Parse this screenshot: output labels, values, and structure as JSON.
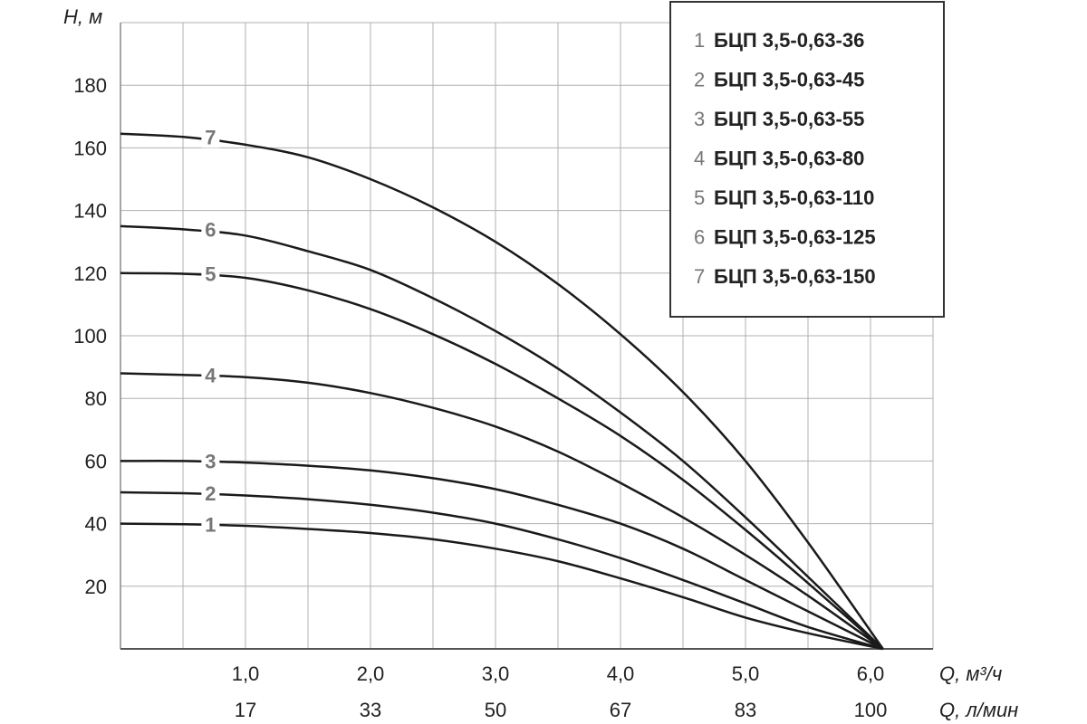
{
  "chart_data": {
    "type": "line",
    "ylabel": "H, м",
    "xlabel_primary": "Q, м³/ч",
    "xlabel_secondary": "Q, л/мин",
    "xlim": [
      0,
      6.5
    ],
    "ylim": [
      0,
      200
    ],
    "x_ticks": [
      "1,0",
      "2,0",
      "3,0",
      "4,0",
      "5,0",
      "6,0"
    ],
    "x_ticks_secondary": [
      "17",
      "33",
      "50",
      "67",
      "83",
      "100"
    ],
    "y_ticks": [
      "20",
      "40",
      "60",
      "80",
      "100",
      "120",
      "140",
      "160",
      "180"
    ],
    "grid": true,
    "legend_position": "top-right",
    "series": [
      {
        "label": "1",
        "name": "БЦП 3,5-0,63-36",
        "x": [
          0,
          0.5,
          1,
          1.5,
          2,
          2.5,
          3,
          3.5,
          4,
          4.5,
          5,
          5.5,
          6.1
        ],
        "y": [
          40,
          39.8,
          39.3,
          38.3,
          37,
          35,
          32,
          28,
          22.5,
          16.5,
          10,
          5,
          0
        ]
      },
      {
        "label": "2",
        "name": "БЦП 3,5-0,63-45",
        "x": [
          0,
          0.5,
          1,
          1.5,
          2,
          2.5,
          3,
          3.5,
          4,
          4.5,
          5,
          5.5,
          6.1
        ],
        "y": [
          50,
          49.7,
          49,
          47.8,
          46,
          43.5,
          40,
          35,
          29,
          22,
          14.5,
          7,
          0
        ]
      },
      {
        "label": "3",
        "name": "БЦП 3,5-0,63-55",
        "x": [
          0,
          0.5,
          1,
          1.5,
          2,
          2.5,
          3,
          3.5,
          4,
          4.5,
          5,
          5.5,
          6.1
        ],
        "y": [
          60,
          60,
          59.5,
          58.5,
          57,
          54.5,
          51,
          46,
          40,
          32,
          22,
          12,
          0
        ]
      },
      {
        "label": "4",
        "name": "БЦП 3,5-0,63-80",
        "x": [
          0,
          0.5,
          1,
          1.5,
          2,
          2.5,
          3,
          3.5,
          4,
          4.5,
          5,
          5.5,
          6.1
        ],
        "y": [
          88,
          87.5,
          86.8,
          85,
          81.7,
          77,
          71,
          63,
          53,
          42,
          30,
          17,
          0
        ]
      },
      {
        "label": "5",
        "name": "БЦП 3,5-0,63-110",
        "x": [
          0,
          0.5,
          1,
          1.5,
          2,
          2.5,
          3,
          3.5,
          4,
          4.5,
          5,
          5.5,
          6.1
        ],
        "y": [
          120,
          119.8,
          118.5,
          114.5,
          108.5,
          100.5,
          91,
          80,
          68,
          54,
          38,
          21,
          0
        ]
      },
      {
        "label": "6",
        "name": "БЦП 3,5-0,63-125",
        "x": [
          0,
          0.5,
          1,
          1.5,
          2,
          2.5,
          3,
          3.5,
          4,
          4.5,
          5,
          5.5,
          6.1
        ],
        "y": [
          135,
          134,
          132,
          127,
          121,
          112,
          101.5,
          89.5,
          75.5,
          60,
          42,
          23,
          0
        ]
      },
      {
        "label": "7",
        "name": "БЦП 3,5-0,63-150",
        "x": [
          0,
          0.5,
          1,
          1.5,
          2,
          2.5,
          3,
          3.5,
          4,
          4.5,
          5,
          5.5,
          6.1
        ],
        "y": [
          164.5,
          163.5,
          161,
          157,
          150,
          141,
          130,
          116.5,
          100.5,
          82,
          60,
          34,
          0
        ]
      }
    ]
  }
}
